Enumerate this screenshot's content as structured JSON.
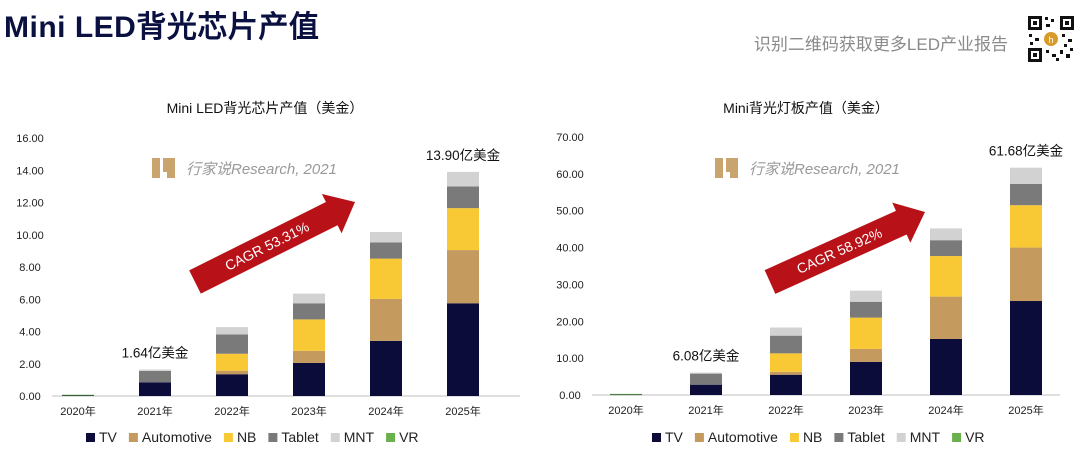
{
  "header": {
    "title": "Mini LED背光芯片产值",
    "subtitle": "识别二维码获取更多LED产业报告"
  },
  "colors": {
    "TV": "#0b0c3a",
    "Automotive": "#c49a5e",
    "NB": "#f9c935",
    "Tablet": "#7a7a7a",
    "MNT": "#d2d2d2",
    "VR": "#6ab04c",
    "arrow": "#b81218"
  },
  "watermark": "行家说Research, 2021",
  "chart_data": [
    {
      "type": "bar",
      "stacked": true,
      "title": "Mini LED背光芯片产值（美金）",
      "categories": [
        "2020年",
        "2021年",
        "2022年",
        "2023年",
        "2024年",
        "2025年"
      ],
      "series": [
        {
          "name": "TV",
          "values": [
            0.06,
            0.85,
            1.35,
            2.05,
            3.42,
            5.75
          ]
        },
        {
          "name": "Automotive",
          "values": [
            0.0,
            0.0,
            0.22,
            0.75,
            2.6,
            3.3
          ]
        },
        {
          "name": "NB",
          "values": [
            0.0,
            0.0,
            1.05,
            1.95,
            2.5,
            2.6
          ]
        },
        {
          "name": "Tablet",
          "values": [
            0.0,
            0.7,
            1.2,
            1.0,
            1.0,
            1.35
          ]
        },
        {
          "name": "MNT",
          "values": [
            0.0,
            0.09,
            0.45,
            0.6,
            0.65,
            0.9
          ]
        },
        {
          "name": "VR",
          "values": [
            0.02,
            0.0,
            0.0,
            0.0,
            0.0,
            0.0
          ]
        }
      ],
      "ylim": [
        0,
        16
      ],
      "yticks": [
        "0.00",
        "2.00",
        "4.00",
        "6.00",
        "8.00",
        "10.00",
        "12.00",
        "14.00",
        "16.00"
      ],
      "annotations": [
        {
          "text": "1.64亿美金",
          "category": "2021年",
          "value": 1.64
        },
        {
          "text": "13.90亿美金",
          "category": "2025年",
          "value": 13.9
        }
      ],
      "cagr_label": "CAGR 53.31%",
      "legend": "bottom"
    },
    {
      "type": "bar",
      "stacked": true,
      "title": "Mini背光灯板产值（美金）",
      "categories": [
        "2020年",
        "2021年",
        "2022年",
        "2023年",
        "2024年",
        "2025年"
      ],
      "series": [
        {
          "name": "TV",
          "values": [
            0.2,
            2.8,
            5.5,
            9.0,
            15.2,
            25.5
          ]
        },
        {
          "name": "Automotive",
          "values": [
            0.0,
            0.0,
            0.8,
            3.5,
            11.5,
            14.5
          ]
        },
        {
          "name": "NB",
          "values": [
            0.0,
            0.0,
            5.0,
            8.5,
            11.0,
            11.5
          ]
        },
        {
          "name": "Tablet",
          "values": [
            0.0,
            3.0,
            4.8,
            4.3,
            4.3,
            5.8
          ]
        },
        {
          "name": "MNT",
          "values": [
            0.0,
            0.28,
            2.2,
            3.0,
            3.2,
            4.38
          ]
        },
        {
          "name": "VR",
          "values": [
            0.1,
            0.0,
            0.0,
            0.0,
            0.0,
            0.0
          ]
        }
      ],
      "ylim": [
        0,
        70
      ],
      "yticks": [
        "0.00",
        "10.00",
        "20.00",
        "30.00",
        "40.00",
        "50.00",
        "60.00",
        "70.00"
      ],
      "annotations": [
        {
          "text": "6.08亿美金",
          "category": "2021年",
          "value": 6.08
        },
        {
          "text": "61.68亿美金",
          "category": "2025年",
          "value": 61.68
        }
      ],
      "cagr_label": "CAGR 58.92%",
      "legend": "bottom"
    }
  ]
}
